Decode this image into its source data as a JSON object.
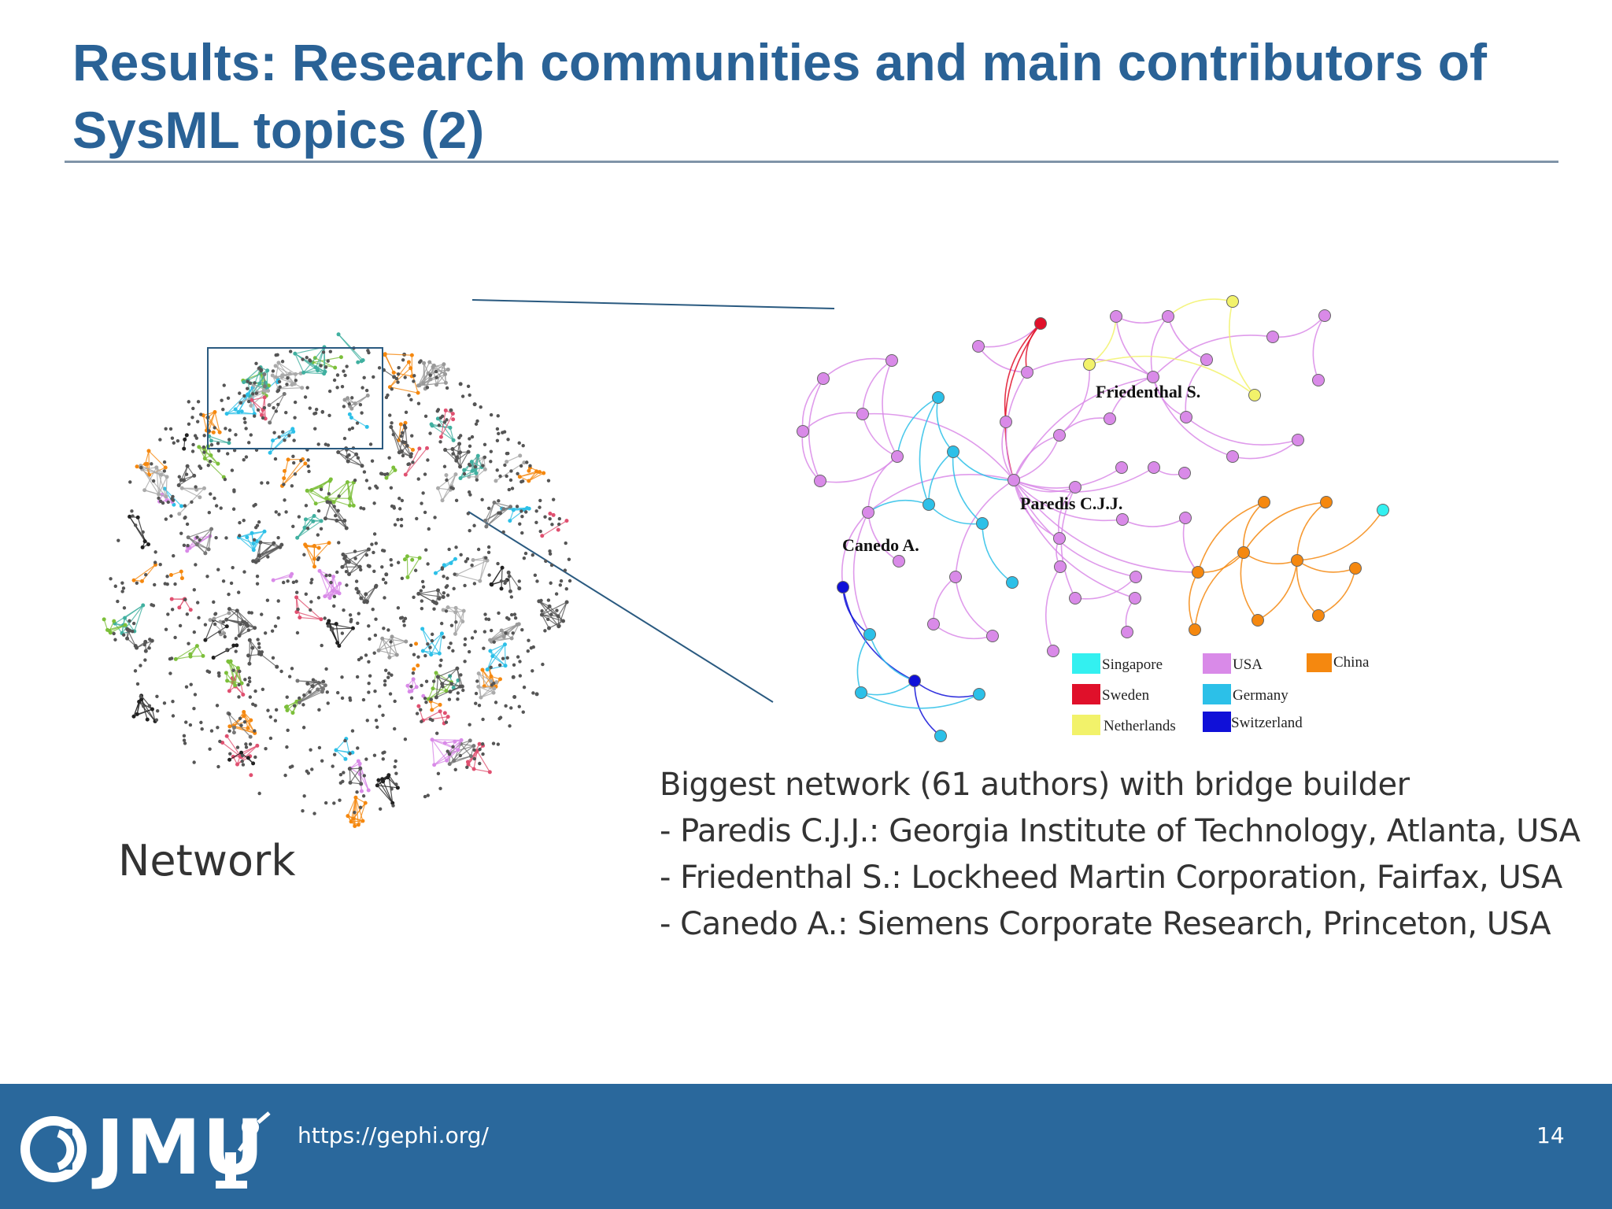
{
  "slide": {
    "title": "Results: Research communities and main contributors of SysML topics (2)",
    "network_caption": "Network",
    "description_lines": [
      "Biggest network (61 authors) with bridge builder",
      "- Paredis C.J.J.: Georgia Institute of Technology, Atlanta, USA",
      "- Friedenthal S.: Lockheed Martin Corporation, Fairfax, USA",
      "- Canedo A.: Siemens Corporate Research, Princeton, USA"
    ]
  },
  "diagram": {
    "node_labels": {
      "friedenthal": "Friedenthal S.",
      "paredis": "Paredis C.J.J.",
      "canedo": "Canedo A."
    },
    "legend": [
      {
        "label": "Singapore",
        "color": "#33f0f0"
      },
      {
        "label": "USA",
        "color": "#d98ae8"
      },
      {
        "label": "China",
        "color": "#f5880f"
      },
      {
        "label": "Sweden",
        "color": "#e0102a"
      },
      {
        "label": "Germany",
        "color": "#2cc0e8"
      },
      {
        "label": "Netherlands",
        "color": "#f2f26a"
      },
      {
        "label": "Switzerland",
        "color": "#1010d8"
      }
    ]
  },
  "footer": {
    "logo_text": "JMU",
    "url": "https://gephi.org/",
    "page_number": "14"
  },
  "colors": {
    "title": "#2a6296",
    "footer_bg": "#2a689c",
    "zoom_lines": "#2a5a80"
  }
}
